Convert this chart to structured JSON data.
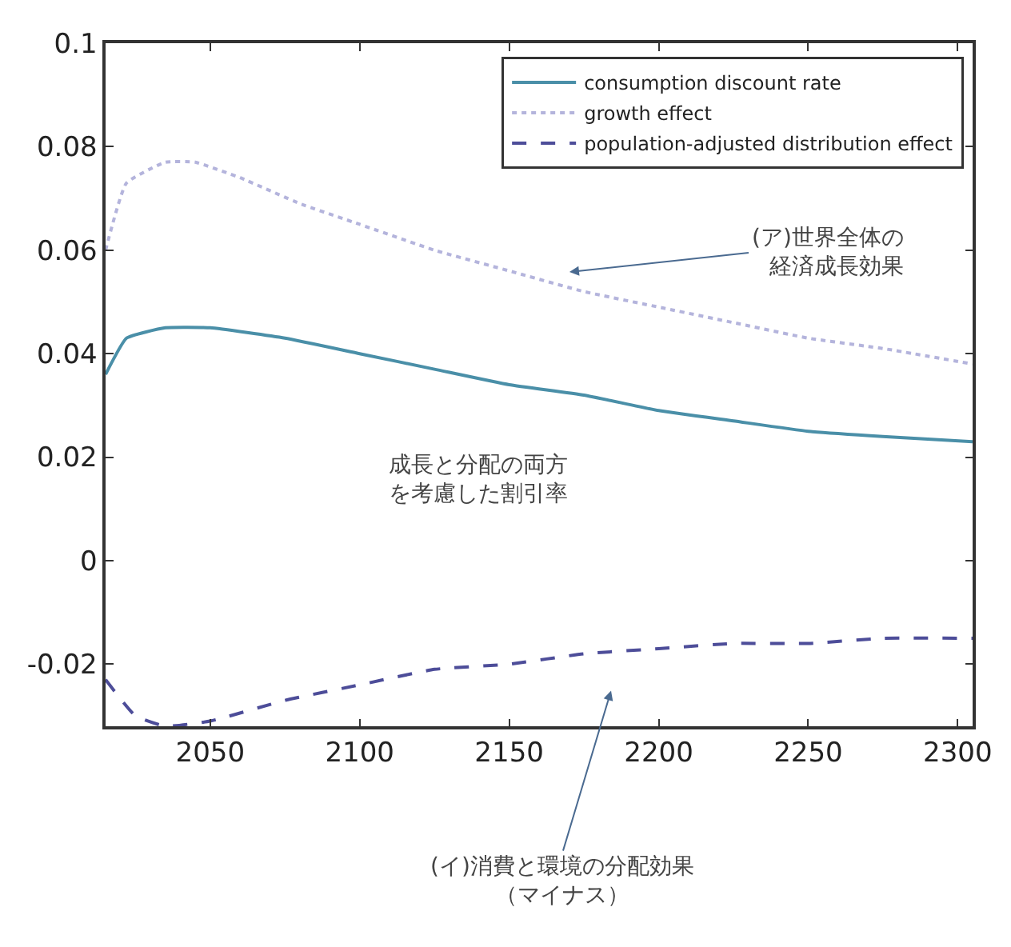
{
  "chart_data": {
    "type": "line",
    "xlim": [
      2015,
      2305
    ],
    "ylim": [
      -0.032,
      0.1
    ],
    "xticks": [
      2050,
      2100,
      2150,
      2200,
      2250,
      2300
    ],
    "yticks": [
      -0.02,
      0,
      0.02,
      0.04,
      0.06,
      0.08,
      0.1
    ],
    "legend": "top right",
    "marker": "none",
    "series": [
      {
        "name": "consumption discount rate",
        "color": "#4a8fa8",
        "line_style": "solid",
        "x": [
          2015,
          2022,
          2035,
          2050,
          2075,
          2100,
          2125,
          2150,
          2175,
          2200,
          2225,
          2250,
          2275,
          2305
        ],
        "values": [
          0.036,
          0.043,
          0.045,
          0.045,
          0.043,
          0.04,
          0.037,
          0.034,
          0.032,
          0.029,
          0.027,
          0.025,
          0.024,
          0.023
        ]
      },
      {
        "name": "growth effect",
        "color": "#b4b4dc",
        "line_style": "dotted",
        "x": [
          2015,
          2022,
          2035,
          2045,
          2060,
          2080,
          2100,
          2125,
          2150,
          2175,
          2200,
          2225,
          2250,
          2275,
          2305
        ],
        "values": [
          0.06,
          0.073,
          0.077,
          0.077,
          0.074,
          0.069,
          0.065,
          0.06,
          0.056,
          0.052,
          0.049,
          0.046,
          0.043,
          0.041,
          0.038
        ]
      },
      {
        "name": "population-adjusted distribution effect",
        "color": "#4d4d99",
        "line_style": "dashed",
        "x": [
          2015,
          2025,
          2035,
          2050,
          2075,
          2100,
          2125,
          2150,
          2175,
          2200,
          2225,
          2250,
          2275,
          2305
        ],
        "values": [
          -0.023,
          -0.03,
          -0.032,
          -0.031,
          -0.027,
          -0.024,
          -0.021,
          -0.02,
          -0.018,
          -0.017,
          -0.016,
          -0.016,
          -0.015,
          -0.015
        ]
      }
    ],
    "annotations": [
      "(ア)世界全体の経済成長効果",
      "成長と分配の両方を考慮した割引率",
      "(イ)消費と環境の分配効果（マイナス）"
    ]
  }
}
